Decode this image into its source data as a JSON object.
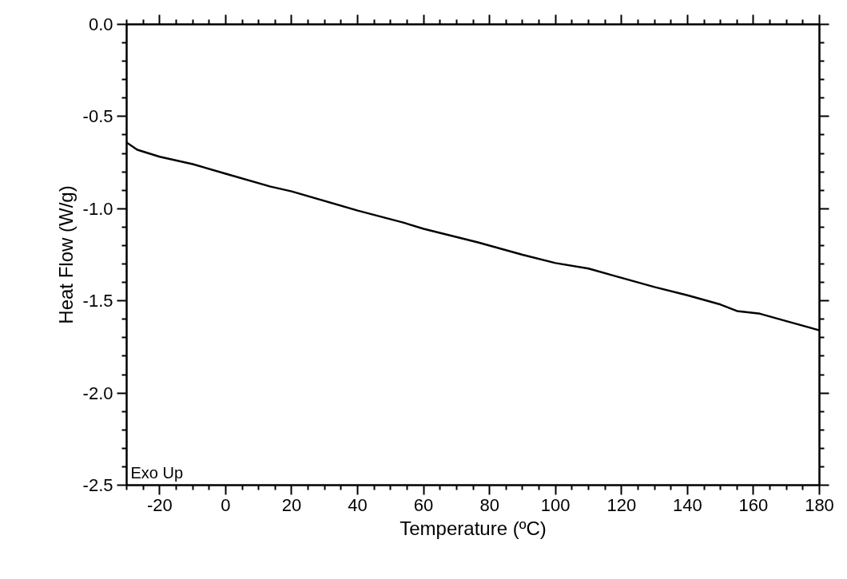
{
  "chart_data": {
    "type": "line",
    "xlabel": "Temperature (ºC)",
    "ylabel": "Heat Flow (W/g)",
    "annotations": [
      "Exo Up"
    ],
    "x": [
      -30,
      -26.8,
      -20,
      -10,
      0,
      13.6,
      20,
      40,
      53.8,
      60,
      76.5,
      90,
      100,
      110,
      120,
      130,
      140,
      150,
      155,
      162,
      170,
      180
    ],
    "series": [
      {
        "color": "#000000",
        "values": [
          -0.641,
          -0.68,
          -0.718,
          -0.758,
          -0.81,
          -0.88,
          -0.906,
          -1.01,
          -1.075,
          -1.109,
          -1.183,
          -1.25,
          -1.295,
          -1.325,
          -1.375,
          -1.425,
          -1.47,
          -1.52,
          -1.555,
          -1.57,
          -1.61,
          -1.66
        ]
      }
    ],
    "xlim": [
      -30,
      180
    ],
    "ylim": [
      -2.5,
      0
    ],
    "xticks": [
      {
        "value": -30,
        "label": null
      },
      {
        "value": -25,
        "label": null
      },
      -20,
      {
        "value": -15,
        "label": null
      },
      {
        "value": -10,
        "label": null
      },
      {
        "value": -5,
        "label": null
      },
      0,
      {
        "value": 5,
        "label": null
      },
      {
        "value": 10,
        "label": null
      },
      {
        "value": 15,
        "label": null
      },
      20,
      {
        "value": 25,
        "label": null
      },
      {
        "value": 30,
        "label": null
      },
      {
        "value": 35,
        "label": null
      },
      40,
      {
        "value": 45,
        "label": null
      },
      {
        "value": 50,
        "label": null
      },
      {
        "value": 55,
        "label": null
      },
      60,
      {
        "value": 65,
        "label": null
      },
      {
        "value": 70,
        "label": null
      },
      {
        "value": 75,
        "label": null
      },
      80,
      {
        "value": 85,
        "label": null
      },
      {
        "value": 90,
        "label": null
      },
      {
        "value": 95,
        "label": null
      },
      100,
      {
        "value": 105,
        "label": null
      },
      {
        "value": 110,
        "label": null
      },
      {
        "value": 115,
        "label": null
      },
      120,
      {
        "value": 125,
        "label": null
      },
      {
        "value": 130,
        "label": null
      },
      {
        "value": 135,
        "label": null
      },
      140,
      {
        "value": 145,
        "label": null
      },
      {
        "value": 150,
        "label": null
      },
      {
        "value": 155,
        "label": null
      },
      160,
      {
        "value": 165,
        "label": null
      },
      {
        "value": 170,
        "label": null
      },
      {
        "value": 175,
        "label": null
      },
      180
    ],
    "yticks": [
      {
        "value": 0,
        "label": "0.0"
      },
      {
        "value": -0.1,
        "label": null
      },
      {
        "value": -0.2,
        "label": null
      },
      {
        "value": -0.3,
        "label": null
      },
      {
        "value": -0.4,
        "label": null
      },
      -0.5,
      {
        "value": -0.6,
        "label": null
      },
      {
        "value": -0.7,
        "label": null
      },
      {
        "value": -0.8,
        "label": null
      },
      {
        "value": -0.9,
        "label": null
      },
      {
        "value": -1.0,
        "label": "-1.0"
      },
      {
        "value": -1.1,
        "label": null
      },
      {
        "value": -1.2,
        "label": null
      },
      {
        "value": -1.3,
        "label": null
      },
      {
        "value": -1.4,
        "label": null
      },
      -1.5,
      {
        "value": -1.6,
        "label": null
      },
      {
        "value": -1.7,
        "label": null
      },
      {
        "value": -1.8,
        "label": null
      },
      {
        "value": -1.9,
        "label": null
      },
      {
        "value": -2.0,
        "label": "-2.0"
      },
      {
        "value": -2.1,
        "label": null
      },
      {
        "value": -2.2,
        "label": null
      },
      {
        "value": -2.3,
        "label": null
      },
      {
        "value": -2.4,
        "label": null
      },
      -2.5
    ],
    "grid": false,
    "marker": "none",
    "line_style": "solid"
  }
}
